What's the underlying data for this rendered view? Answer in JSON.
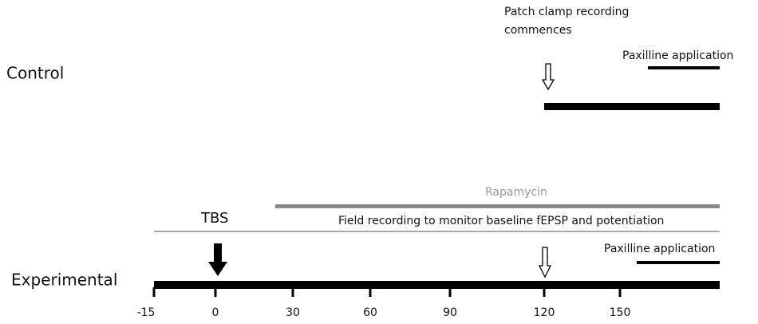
{
  "control": {
    "label": "Control",
    "patch_note": [
      "Patch clamp recording",
      "commences"
    ],
    "paxilline": "Paxilline application"
  },
  "experimental": {
    "label": "Experimental",
    "rapamycin": "Rapamycin",
    "tbs": "TBS",
    "field_note": "Field recording to monitor baseline fEPSP and potentiation",
    "paxilline": "Paxilline application"
  },
  "axis": {
    "ticks": [
      "-15",
      "0",
      "30",
      "60",
      "90",
      "120",
      "150"
    ]
  }
}
